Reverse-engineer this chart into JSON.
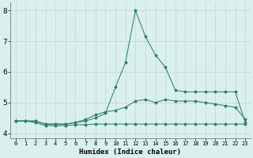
{
  "xlabel": "Humidex (Indice chaleur)",
  "x": [
    0,
    1,
    2,
    3,
    4,
    5,
    6,
    7,
    8,
    9,
    10,
    11,
    12,
    13,
    14,
    15,
    16,
    17,
    18,
    19,
    20,
    21,
    22,
    23
  ],
  "line_peak": [
    4.4,
    4.4,
    4.4,
    4.3,
    4.3,
    4.3,
    4.35,
    4.4,
    4.5,
    4.65,
    5.5,
    6.3,
    8.0,
    7.15,
    6.55,
    6.15,
    5.4,
    5.35,
    5.35,
    5.35,
    5.35,
    5.35,
    5.35,
    4.35
  ],
  "line_mid": [
    4.4,
    4.4,
    4.4,
    4.3,
    4.3,
    4.3,
    4.35,
    4.45,
    4.6,
    4.7,
    4.75,
    4.85,
    5.05,
    5.1,
    5.0,
    5.1,
    5.05,
    5.05,
    5.05,
    5.0,
    4.95,
    4.9,
    4.85,
    4.45
  ],
  "line_flat": [
    4.4,
    4.4,
    4.35,
    4.25,
    4.25,
    4.25,
    4.28,
    4.28,
    4.3,
    4.3,
    4.3,
    4.3,
    4.3,
    4.3,
    4.3,
    4.3,
    4.3,
    4.3,
    4.3,
    4.3,
    4.3,
    4.3,
    4.3,
    4.3
  ],
  "line_color": "#2e7d6e",
  "bg_color": "#daf0ef",
  "grid_color_h": "#e8c8c8",
  "grid_color_v": "#c8dada",
  "ylim": [
    3.85,
    8.25
  ],
  "xlim": [
    -0.5,
    23.5
  ],
  "yticks": [
    4,
    5,
    6,
    7,
    8
  ]
}
